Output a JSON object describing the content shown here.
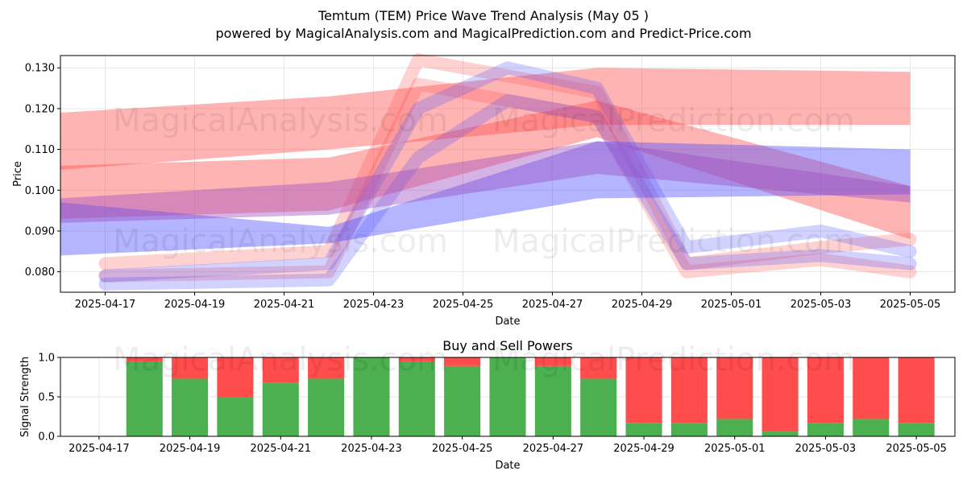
{
  "header": {
    "title": "Temtum (TEM) Price Wave Trend Analysis (May 05 )",
    "subtitle": "powered by MagicalAnalysis.com and MagicalPrediction.com and Predict-Price.com"
  },
  "watermarks": [
    "MagicalAnalysis.com",
    "MagicalPrediction.com",
    "MagicalAnalysis.com",
    "MagicalPrediction.com",
    "MagicalAnalysis.com",
    "MagicalPrediction.com"
  ],
  "colors": {
    "red": "#ff4d4d",
    "blue": "#4d4dff",
    "buy": "#4caf50",
    "sell": "#ff4c4c"
  },
  "chart_data": [
    {
      "type": "area",
      "title": "",
      "xlabel": "Date",
      "ylabel": "Price",
      "ylim": [
        0.075,
        0.133
      ],
      "xlim": [
        "2025-04-16",
        "2025-05-06"
      ],
      "grid": true,
      "x_ticks": [
        "2025-04-17",
        "2025-04-19",
        "2025-04-21",
        "2025-04-23",
        "2025-04-25",
        "2025-04-27",
        "2025-04-29",
        "2025-05-01",
        "2025-05-03",
        "2025-05-05"
      ],
      "y_ticks": [
        "0.080",
        "0.090",
        "0.100",
        "0.110",
        "0.120",
        "0.130"
      ],
      "series": [
        {
          "color": "red",
          "x": [
            "2025-04-16",
            "2025-04-22",
            "2025-04-28",
            "2025-05-05"
          ],
          "upper": [
            0.119,
            0.123,
            0.13,
            0.129
          ],
          "lower": [
            0.105,
            0.11,
            0.116,
            0.116
          ]
        },
        {
          "color": "red",
          "x": [
            "2025-04-16",
            "2025-04-22",
            "2025-04-28",
            "2025-05-05"
          ],
          "upper": [
            0.106,
            0.108,
            0.122,
            0.101
          ],
          "lower": [
            0.093,
            0.095,
            0.113,
            0.088
          ]
        },
        {
          "color": "red",
          "x": [
            "2025-04-17",
            "2025-04-22",
            "2025-04-24",
            "2025-04-28",
            "2025-04-30",
            "2025-05-03",
            "2025-05-05"
          ],
          "upper": [
            0.082,
            0.085,
            0.132,
            0.124,
            0.082,
            0.086,
            0.088
          ]
        },
        {
          "color": "red",
          "x": [
            "2025-04-17",
            "2025-04-22",
            "2025-04-24",
            "2025-04-28",
            "2025-04-30",
            "2025-05-03",
            "2025-05-05"
          ],
          "upper": [
            0.079,
            0.08,
            0.126,
            0.118,
            0.08,
            0.083,
            0.08
          ]
        },
        {
          "color": "blue",
          "x": [
            "2025-04-16",
            "2025-04-22",
            "2025-04-28",
            "2025-05-05"
          ],
          "upper": [
            0.097,
            0.091,
            0.112,
            0.11
          ],
          "lower": [
            0.084,
            0.087,
            0.098,
            0.099
          ]
        },
        {
          "color": "blue",
          "x": [
            "2025-04-17",
            "2025-04-22",
            "2025-04-24",
            "2025-04-26",
            "2025-04-28",
            "2025-04-30",
            "2025-05-03",
            "2025-05-05"
          ],
          "upper": [
            0.079,
            0.082,
            0.12,
            0.13,
            0.125,
            0.086,
            0.09,
            0.085
          ]
        },
        {
          "color": "blue",
          "x": [
            "2025-04-17",
            "2025-04-22",
            "2025-04-24",
            "2025-04-26",
            "2025-04-28",
            "2025-04-30",
            "2025-05-03",
            "2025-05-05"
          ],
          "upper": [
            0.077,
            0.078,
            0.108,
            0.122,
            0.118,
            0.082,
            0.084,
            0.082
          ]
        },
        {
          "color": "purple",
          "x": [
            "2025-04-16",
            "2025-04-22",
            "2025-04-28",
            "2025-05-05"
          ],
          "upper": [
            0.098,
            0.102,
            0.112,
            0.101
          ],
          "lower": [
            0.092,
            0.094,
            0.104,
            0.097
          ]
        }
      ]
    },
    {
      "type": "bar",
      "title": "Buy and Sell Powers",
      "xlabel": "Date",
      "ylabel": "Signal Strength",
      "ylim": [
        0,
        1.0
      ],
      "x_ticks": [
        "2025-04-17",
        "2025-04-19",
        "2025-04-21",
        "2025-04-23",
        "2025-04-25",
        "2025-04-27",
        "2025-04-29",
        "2025-05-01",
        "2025-05-03",
        "2025-05-05"
      ],
      "y_ticks": [
        "0.0",
        "0.5",
        "1.0"
      ],
      "categories": [
        "2025-04-18",
        "2025-04-19",
        "2025-04-20",
        "2025-04-21",
        "2025-04-22",
        "2025-04-23",
        "2025-04-24",
        "2025-04-25",
        "2025-04-26",
        "2025-04-27",
        "2025-04-28",
        "2025-04-29",
        "2025-04-30",
        "2025-05-01",
        "2025-05-02",
        "2025-05-03",
        "2025-05-04",
        "2025-05-05"
      ],
      "series": [
        {
          "name": "Buy",
          "values": [
            0.95,
            0.73,
            0.5,
            0.68,
            0.73,
            1.0,
            0.95,
            0.89,
            1.0,
            0.89,
            0.73,
            0.17,
            0.17,
            0.22,
            0.06,
            0.17,
            0.22,
            0.17
          ]
        },
        {
          "name": "Sell",
          "values": [
            0.05,
            0.27,
            0.5,
            0.32,
            0.27,
            0.0,
            0.05,
            0.11,
            0.0,
            0.11,
            0.27,
            0.83,
            0.83,
            0.78,
            0.94,
            0.83,
            0.78,
            0.83
          ]
        }
      ]
    }
  ]
}
